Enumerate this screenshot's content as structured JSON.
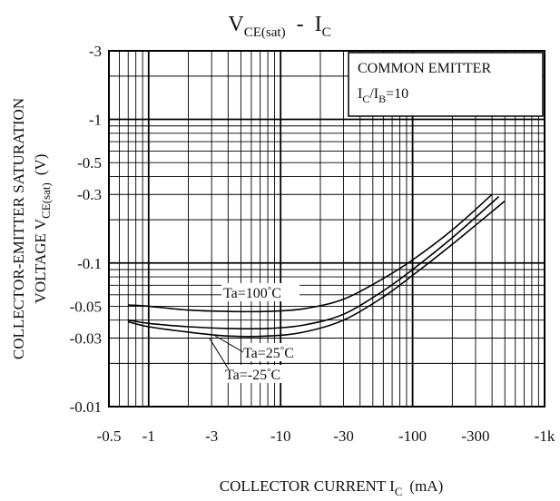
{
  "chart_data": {
    "type": "line",
    "title": {
      "main_a": "V",
      "main_sub": "CE(sat)",
      "sep": "-",
      "main_b": "I",
      "main_b_sub": "C"
    },
    "xlabel": {
      "main": "COLLECTOR CURRENT I",
      "sub": "C",
      "unit": "(mA)"
    },
    "ylabel": {
      "line1": "COLLECTOR-EMITTER SATURATION",
      "line2_a": "VOLTAGE V",
      "line2_sub": "CE(sat)",
      "line2_unit": "(V)"
    },
    "x_scale": "log",
    "y_scale": "log",
    "xlim": [
      -0.5,
      -1000
    ],
    "ylim": [
      -0.01,
      -3
    ],
    "grid": true,
    "x_ticks": [
      -0.5,
      -1,
      -3,
      -10,
      -30,
      -100,
      -300,
      -1000
    ],
    "x_tick_labels": [
      "-0.5",
      "-1",
      "-3",
      "-10",
      "-30",
      "-100",
      "-300",
      "-1k"
    ],
    "y_ticks": [
      -3,
      -1,
      -0.5,
      -0.3,
      -0.1,
      -0.05,
      -0.03,
      -0.01
    ],
    "y_tick_labels": [
      "-3",
      "-1",
      "-0.5",
      "-0.3",
      "-0.1",
      "-0.05",
      "-0.03",
      "-0.01"
    ],
    "annotation": {
      "line1": "COMMON EMITTER",
      "l2_a": "I",
      "l2_a_sub": "C",
      "l2_sep": "/I",
      "l2_b_sub": "B",
      "l2_val": "=10"
    },
    "series": [
      {
        "name": "Ta=100°C",
        "x": [
          -0.7,
          -1,
          -2,
          -4,
          -8,
          -15,
          -30,
          -60,
          -100,
          -200,
          -400
        ],
        "y": [
          -0.051,
          -0.05,
          -0.047,
          -0.046,
          -0.046,
          -0.048,
          -0.056,
          -0.078,
          -0.105,
          -0.17,
          -0.3
        ]
      },
      {
        "name": "Ta=25°C",
        "x": [
          -0.7,
          -1,
          -2,
          -4,
          -8,
          -15,
          -30,
          -60,
          -100,
          -200,
          -450
        ],
        "y": [
          -0.04,
          -0.038,
          -0.036,
          -0.035,
          -0.035,
          -0.037,
          -0.044,
          -0.064,
          -0.09,
          -0.15,
          -0.29
        ]
      },
      {
        "name": "Ta=-25°C",
        "x": [
          -0.7,
          -1,
          -2,
          -4,
          -8,
          -15,
          -30,
          -60,
          -100,
          -200,
          -500
        ],
        "y": [
          -0.039,
          -0.036,
          -0.033,
          -0.031,
          -0.031,
          -0.033,
          -0.04,
          -0.058,
          -0.082,
          -0.135,
          -0.27
        ]
      }
    ],
    "curve_labels": [
      {
        "a": "Ta=100",
        "deg": "°",
        "b": "C"
      },
      {
        "a": "Ta=25",
        "deg": "°",
        "b": "C"
      },
      {
        "a": "Ta=-25",
        "deg": "°",
        "b": "C"
      }
    ]
  }
}
